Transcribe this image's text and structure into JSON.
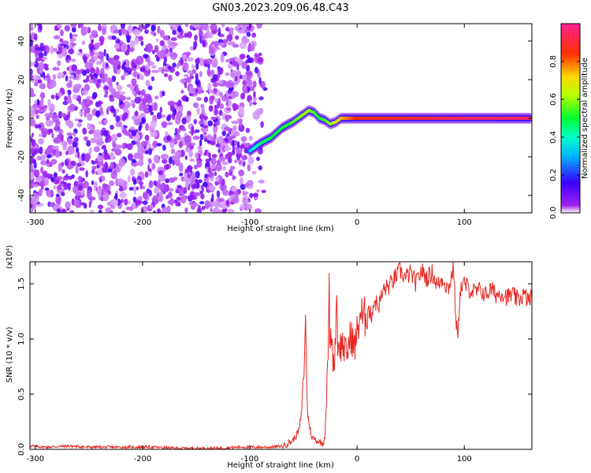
{
  "figure": {
    "title": "GN03.2023.209.06.48.C43"
  },
  "chart_data": [
    {
      "type": "heatmap",
      "title": "GN03.2023.209.06.48.C43",
      "xlabel": "Height of straight line (km)",
      "ylabel": "Frequency (Hz)",
      "xlim": [
        -305,
        163
      ],
      "ylim": [
        -49,
        49
      ],
      "x_ticks": [
        -300,
        -200,
        -100,
        0,
        100
      ],
      "y_ticks": [
        -40,
        -20,
        0,
        20,
        40
      ],
      "colorbar": {
        "label": "Normalized spectral amplitude",
        "range": [
          0.0,
          1.0
        ],
        "ticks": [
          0.0,
          0.2,
          0.4,
          0.6,
          0.8
        ],
        "colormap": "white-purple-blue-cyan-green-yellow-red-magenta"
      },
      "noise_region_x": [
        -305,
        -85
      ],
      "signal_track": [
        {
          "x": -100,
          "y": -17,
          "amplitude": 0.35
        },
        {
          "x": -90,
          "y": -13,
          "amplitude": 0.45
        },
        {
          "x": -80,
          "y": -10,
          "amplitude": 0.5
        },
        {
          "x": -70,
          "y": -5,
          "amplitude": 0.5
        },
        {
          "x": -60,
          "y": -2,
          "amplitude": 0.55
        },
        {
          "x": -50,
          "y": 2,
          "amplitude": 0.6
        },
        {
          "x": -45,
          "y": 4,
          "amplitude": 0.6
        },
        {
          "x": -40,
          "y": 3,
          "amplitude": 0.55
        },
        {
          "x": -35,
          "y": 0,
          "amplitude": 0.5
        },
        {
          "x": -30,
          "y": -1,
          "amplitude": 0.55
        },
        {
          "x": -25,
          "y": -3,
          "amplitude": 0.6
        },
        {
          "x": -20,
          "y": -2,
          "amplitude": 0.65
        },
        {
          "x": -15,
          "y": 0,
          "amplitude": 0.75
        },
        {
          "x": 0,
          "y": 0,
          "amplitude": 0.85
        },
        {
          "x": 50,
          "y": 0,
          "amplitude": 0.9
        },
        {
          "x": 100,
          "y": 0,
          "amplitude": 0.95
        },
        {
          "x": 163,
          "y": 0,
          "amplitude": 0.95
        }
      ]
    },
    {
      "type": "line",
      "xlabel": "Height of straight line (km)",
      "ylabel": "SNR (10 * v/v)",
      "y_multiplier": "(x10⁴)",
      "xlim": [
        -305,
        163
      ],
      "ylim": [
        0,
        1.7
      ],
      "x_ticks": [
        -300,
        -200,
        -100,
        0,
        100
      ],
      "y_ticks": [
        0.0,
        0.5,
        1.0,
        1.5
      ],
      "color": "#e8251f",
      "series": [
        {
          "x": [
            -305,
            -290,
            -270,
            -250,
            -230,
            -210,
            -190,
            -170,
            -150,
            -130,
            -110,
            -100,
            -90,
            -80,
            -70,
            -65,
            -60,
            -57,
            -54,
            -52,
            -50,
            -49,
            -48,
            -47,
            -46,
            -44,
            -42,
            -40,
            -38,
            -35,
            -32,
            -30,
            -28,
            -27,
            -26,
            -25,
            -24,
            -22,
            -20,
            -19,
            -18,
            -17,
            -16,
            -15,
            -13,
            -10,
            -8,
            -5,
            -3,
            0,
            3,
            6,
            10,
            13,
            16,
            20,
            25,
            30,
            35,
            40,
            45,
            50,
            55,
            60,
            65,
            70,
            75,
            80,
            85,
            90,
            92,
            94,
            96,
            100,
            105,
            110,
            115,
            120,
            125,
            130,
            135,
            140,
            145,
            150,
            155,
            160,
            163
          ],
          "y": [
            0.03,
            0.02,
            0.03,
            0.02,
            0.02,
            0.02,
            0.02,
            0.01,
            0.01,
            0.01,
            0.02,
            0.02,
            0.02,
            0.02,
            0.03,
            0.05,
            0.08,
            0.12,
            0.18,
            0.3,
            0.65,
            0.85,
            1.12,
            0.7,
            0.3,
            0.2,
            0.1,
            0.1,
            0.08,
            0.07,
            0.05,
            0.12,
            0.6,
            0.9,
            1.38,
            0.85,
            1.1,
            0.75,
            1.0,
            1.6,
            0.8,
            1.1,
            0.9,
            0.95,
            0.95,
            0.85,
            0.95,
            1.05,
            0.9,
            1.05,
            1.25,
            1.15,
            1.3,
            1.2,
            1.35,
            1.3,
            1.45,
            1.48,
            1.55,
            1.62,
            1.55,
            1.6,
            1.5,
            1.62,
            1.55,
            1.6,
            1.48,
            1.55,
            1.45,
            1.65,
            1.2,
            1.0,
            1.45,
            1.5,
            1.45,
            1.42,
            1.44,
            1.4,
            1.45,
            1.4,
            1.42,
            1.38,
            1.4,
            1.35,
            1.4,
            1.35,
            1.38
          ]
        }
      ]
    }
  ]
}
